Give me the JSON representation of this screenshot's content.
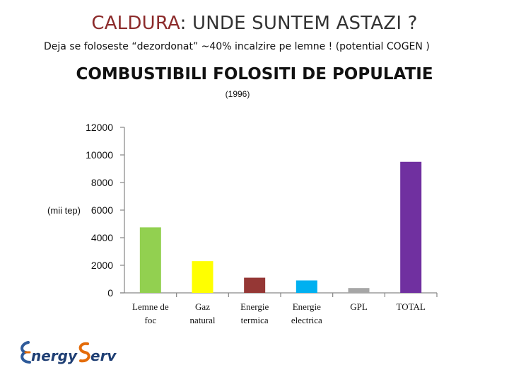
{
  "slide": {
    "title_accent": "CALDURA",
    "title_rest": ": UNDE SUNTEM ASTAZI ?",
    "subtitle": "Deja se foloseste “dezordonat” ~40% incalzire pe lemne ! (potential  COGEN )",
    "logo_text_1": "nergy",
    "logo_text_2": "erv"
  },
  "chart_data": {
    "type": "bar",
    "title": "COMBUSTIBILI FOLOSITI DE POPULATIE",
    "subtitle": "(1996)",
    "ylabel": "(mii tep)",
    "ylim": [
      0,
      12000
    ],
    "yticks": [
      0,
      2000,
      4000,
      6000,
      8000,
      10000,
      12000
    ],
    "categories": [
      [
        "Lemne de",
        "foc"
      ],
      [
        "Gaz",
        "natural"
      ],
      [
        "Energie",
        "termica"
      ],
      [
        "Energie",
        "electrica"
      ],
      [
        "GPL"
      ],
      [
        "TOTAL"
      ]
    ],
    "values": [
      4750,
      2300,
      1100,
      900,
      350,
      9500
    ],
    "colors": [
      "#92d050",
      "#ffff00",
      "#953735",
      "#00b0f0",
      "#a6a6a6",
      "#7030a0"
    ],
    "grid": false,
    "legend": "none"
  }
}
